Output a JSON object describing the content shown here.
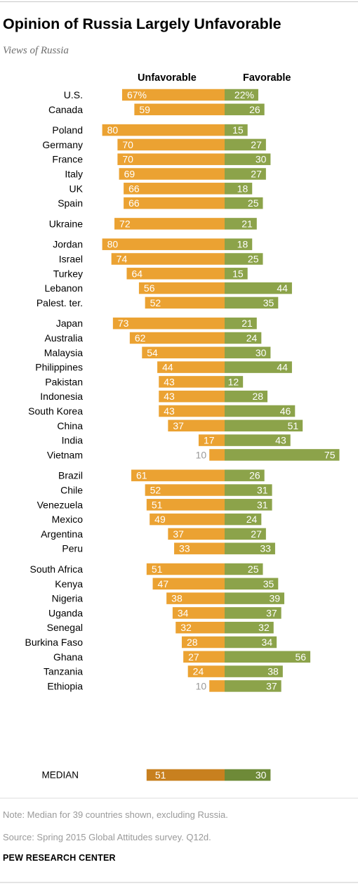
{
  "title": "Opinion of Russia Largely Unfavorable",
  "subtitle": "Views of Russia",
  "colors": {
    "unfavorable": "#EBA232",
    "favorable": "#8CA34A",
    "median_unfavorable": "#C8801F",
    "median_favorable": "#6E8A38"
  },
  "chart_data": {
    "type": "bar",
    "orientation": "horizontal diverging",
    "series": [
      {
        "name": "Unfavorable",
        "values": [
          67,
          59,
          80,
          70,
          70,
          69,
          66,
          66,
          72,
          80,
          74,
          64,
          56,
          52,
          73,
          62,
          54,
          44,
          43,
          43,
          43,
          37,
          17,
          10,
          61,
          52,
          51,
          49,
          37,
          33,
          51,
          47,
          38,
          34,
          32,
          28,
          27,
          24,
          10
        ]
      },
      {
        "name": "Favorable",
        "values": [
          22,
          26,
          15,
          27,
          30,
          27,
          18,
          25,
          21,
          18,
          25,
          15,
          44,
          35,
          21,
          24,
          30,
          44,
          12,
          28,
          46,
          51,
          43,
          75,
          26,
          31,
          31,
          24,
          27,
          33,
          25,
          35,
          39,
          37,
          32,
          34,
          56,
          38,
          37
        ]
      }
    ],
    "categories": [
      "U.S.",
      "Canada",
      "Poland",
      "Germany",
      "France",
      "Italy",
      "UK",
      "Spain",
      "Ukraine",
      "Jordan",
      "Israel",
      "Turkey",
      "Lebanon",
      "Palest. ter.",
      "Japan",
      "Australia",
      "Malaysia",
      "Philippines",
      "Pakistan",
      "Indonesia",
      "South Korea",
      "China",
      "India",
      "Vietnam",
      "Brazil",
      "Chile",
      "Venezuela",
      "Mexico",
      "Argentina",
      "Peru",
      "South Africa",
      "Kenya",
      "Nigeria",
      "Uganda",
      "Senegal",
      "Burkina Faso",
      "Ghana",
      "Tanzania",
      "Ethiopia"
    ],
    "groups": [
      [
        "U.S.",
        "Canada"
      ],
      [
        "Poland",
        "Germany",
        "France",
        "Italy",
        "UK",
        "Spain"
      ],
      [
        "Ukraine"
      ],
      [
        "Jordan",
        "Israel",
        "Turkey",
        "Lebanon",
        "Palest. ter."
      ],
      [
        "Japan",
        "Australia",
        "Malaysia",
        "Philippines",
        "Pakistan",
        "Indonesia",
        "South Korea",
        "China",
        "India",
        "Vietnam"
      ],
      [
        "Brazil",
        "Chile",
        "Venezuela",
        "Mexico",
        "Argentina",
        "Peru"
      ],
      [
        "South Africa",
        "Kenya",
        "Nigeria",
        "Uganda",
        "Senegal",
        "Burkina Faso",
        "Ghana",
        "Tanzania",
        "Ethiopia"
      ]
    ],
    "value_labels": {
      "U.S.": {
        "unfavorable": "67%",
        "favorable": "22%"
      }
    },
    "median": {
      "label": "MEDIAN",
      "unfavorable": 51,
      "favorable": 30
    }
  },
  "notes": {
    "note": "Note: Median for 39 countries shown, excluding Russia.",
    "source": "Source: Spring 2015 Global Attitudes survey. Q12d.",
    "credit": "PEW RESEARCH CENTER"
  }
}
